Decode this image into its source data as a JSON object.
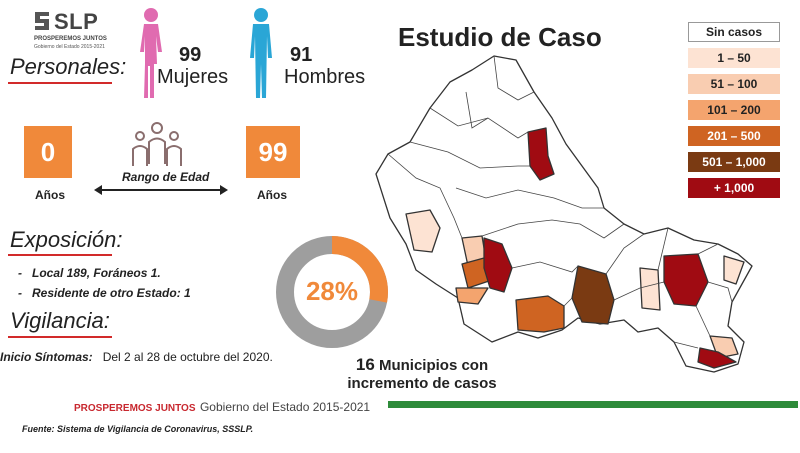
{
  "logo": {
    "text": "SLP",
    "subtitle1": "PROSPEREMOS JUNTOS",
    "subtitle2": "Gobierno del Estado 2015-2021"
  },
  "personales": {
    "title": "Personales:",
    "mujeres_count": "99",
    "mujeres_label": "Mujeres",
    "hombres_count": "91",
    "hombres_label": "Hombres"
  },
  "edad": {
    "min_value": "0",
    "max_value": "99",
    "min_label": "Años",
    "max_label": "Años",
    "range_label": "Rango de Edad"
  },
  "exposicion": {
    "title": "Exposición:",
    "items": [
      "Local  189, Foráneos 1.",
      "Residente de otro Estado: 1"
    ]
  },
  "vigilancia": {
    "title": "Vigilancia:",
    "sintomas_label": "Inicio Síntomas:",
    "sintomas_value": "Del 2 al 28 de octubre del 2020."
  },
  "donut": {
    "percent_label": "28%",
    "percent": 28,
    "fill_color": "#f0893a",
    "track_color": "#9e9e9e"
  },
  "main_title": "Estudio de Caso",
  "legend": [
    {
      "label": "Sin casos",
      "bg": "#ffffff",
      "fg": "#222222",
      "border": "#999999"
    },
    {
      "label": "1 – 50",
      "bg": "#fde3d3",
      "fg": "#222222",
      "border": "#fde3d3"
    },
    {
      "label": "51 – 100",
      "bg": "#f9cdb1",
      "fg": "#222222",
      "border": "#f9cdb1"
    },
    {
      "label": "101 – 200",
      "bg": "#f4a46e",
      "fg": "#222222",
      "border": "#f4a46e"
    },
    {
      "label": "201 – 500",
      "bg": "#cf6422",
      "fg": "#ffffff",
      "border": "#cf6422"
    },
    {
      "label": "501 – 1,000",
      "bg": "#7a3a12",
      "fg": "#ffffff",
      "border": "#7a3a12"
    },
    {
      "label": "+ 1,000",
      "bg": "#a00b12",
      "fg": "#ffffff",
      "border": "#a00b12"
    }
  ],
  "municipios": {
    "count": "16",
    "line1": "Municipios con",
    "line2": "incremento de casos"
  },
  "footer": {
    "red": "PROSPEREMOS JUNTOS",
    "gray": "Gobierno del Estado 2015-2021",
    "fuente": "Fuente: Sistema de Vigilancia de Coronavirus, SSSLP."
  },
  "colors": {
    "accent_orange": "#f0893a",
    "pink": "#e06bb0",
    "blue": "#2aa6d6",
    "footer_green": "#2e8b3a",
    "underline_red": "#d22a2a"
  }
}
